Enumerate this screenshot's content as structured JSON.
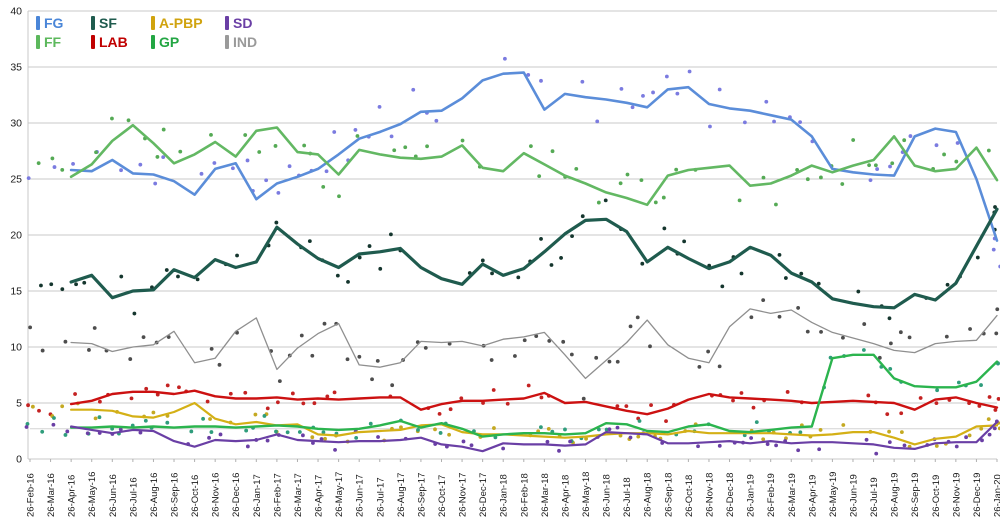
{
  "chart_data": {
    "type": "line",
    "title": "",
    "xlabel": "",
    "ylabel": "",
    "ylim": [
      0,
      40
    ],
    "y_ticks": [
      0,
      5,
      10,
      15,
      20,
      25,
      30,
      35,
      40
    ],
    "grid": "horizontal",
    "legend_position": "top-left",
    "x_labels": [
      "26-Feb-16",
      "26-Mar-16",
      "26-Apr-16",
      "26-May-16",
      "26-Jun-16",
      "26-Jul-16",
      "26-Aug-16",
      "26-Sep-16",
      "26-Oct-16",
      "26-Nov-16",
      "26-Dec-16",
      "26-Jan-17",
      "26-Feb-17",
      "26-Mar-17",
      "26-Apr-17",
      "26-May-17",
      "26-Jun-17",
      "26-Jul-17",
      "26-Aug-17",
      "26-Sep-17",
      "26-Oct-17",
      "26-Nov-17",
      "26-Dec-17",
      "26-Jan-18",
      "26-Feb-18",
      "26-Mar-18",
      "26-Apr-18",
      "26-May-18",
      "26-Jun-18",
      "26-Jul-18",
      "26-Aug-18",
      "26-Sep-18",
      "26-Oct-18",
      "26-Nov-18",
      "26-Dec-18",
      "26-Jan-19",
      "26-Feb-19",
      "26-Mar-19",
      "26-Apr-19",
      "26-May-19",
      "26-Jun-19",
      "26-Jul-19",
      "26-Aug-19",
      "26-Sep-19",
      "26-Oct-19",
      "26-Nov-19",
      "26-Dec-19",
      "26-Jan-20"
    ],
    "reference_line": {
      "value": 2.7,
      "color": "#d4d4d4"
    },
    "series": [
      {
        "name": "IND",
        "color": "#8f8f8f",
        "dot_color": "#4d4d4d",
        "width": 1.3,
        "scatter_spread": 2.2,
        "values": [
          null,
          null,
          10.4,
          10.3,
          9.6,
          10.0,
          10.2,
          11.4,
          8.6,
          9.0,
          11.4,
          12.6,
          8.0,
          9.9,
          11.2,
          12.1,
          8.4,
          8.2,
          8.6,
          10.5,
          10.4,
          10.5,
          10.1,
          10.7,
          10.9,
          11.3,
          9.3,
          7.2,
          8.8,
          10.4,
          12.4,
          10.2,
          9.0,
          8.6,
          11.8,
          13.4,
          13.0,
          13.3,
          12.2,
          11.3,
          10.8,
          10.3,
          9.7,
          9.5,
          10.3,
          10.5,
          10.6,
          12.8
        ]
      },
      {
        "name": "FG",
        "color": "#5b8dd9",
        "dot_color": "#7b7be0",
        "width": 2.6,
        "scatter_spread": 2.6,
        "values": [
          null,
          null,
          25.8,
          25.7,
          26.7,
          25.5,
          25.4,
          24.8,
          23.6,
          25.9,
          26.4,
          23.2,
          24.6,
          25.2,
          25.9,
          27.2,
          28.6,
          29.2,
          29.9,
          31.0,
          31.1,
          32.2,
          33.8,
          34.4,
          34.5,
          31.2,
          32.6,
          32.3,
          32.1,
          31.8,
          31.4,
          33.0,
          33.2,
          31.7,
          31.3,
          31.1,
          30.7,
          30.3,
          28.8,
          25.9,
          25.6,
          25.4,
          25.3,
          28.8,
          29.5,
          29.2,
          25.0,
          19.5
        ]
      },
      {
        "name": "FF",
        "color": "#63b863",
        "dot_color": "#55aa55",
        "width": 2.6,
        "scatter_spread": 2.6,
        "values": [
          null,
          null,
          25.2,
          26.3,
          28.4,
          29.8,
          28.2,
          26.4,
          27.2,
          28.3,
          27.0,
          29.3,
          29.6,
          27.4,
          27.2,
          25.4,
          27.6,
          27.2,
          26.9,
          26.8,
          27.0,
          28.0,
          26.0,
          25.7,
          27.3,
          26.3,
          25.3,
          24.6,
          23.8,
          23.3,
          22.7,
          25.3,
          25.8,
          26.0,
          26.2,
          24.4,
          24.6,
          25.3,
          26.2,
          25.6,
          26.2,
          26.7,
          28.8,
          26.2,
          25.7,
          25.9,
          27.8,
          24.9
        ]
      },
      {
        "name": "SF",
        "color": "#1f5b4e",
        "dot_color": "#15362e",
        "width": 3.2,
        "scatter_spread": 2.3,
        "values": [
          null,
          null,
          15.8,
          16.4,
          14.4,
          15.0,
          15.1,
          16.9,
          16.2,
          17.8,
          17.1,
          17.6,
          20.7,
          19.2,
          17.9,
          17.1,
          18.3,
          18.5,
          18.8,
          17.1,
          16.1,
          15.6,
          17.4,
          16.4,
          17.0,
          18.5,
          20.1,
          21.3,
          21.4,
          20.3,
          17.6,
          18.9,
          17.9,
          17.0,
          17.6,
          18.9,
          18.2,
          16.6,
          15.8,
          14.3,
          13.9,
          13.6,
          13.5,
          14.7,
          14.2,
          15.7,
          19.0,
          22.3
        ]
      },
      {
        "name": "LAB",
        "color": "#cc1111",
        "dot_color": "#c42222",
        "width": 2.4,
        "scatter_spread": 1.3,
        "values": [
          null,
          null,
          4.9,
          5.2,
          5.8,
          6.0,
          6.0,
          5.8,
          6.1,
          5.6,
          5.4,
          5.4,
          5.5,
          5.3,
          5.4,
          5.3,
          5.4,
          5.5,
          5.5,
          4.4,
          4.9,
          5.2,
          5.2,
          5.3,
          5.4,
          5.9,
          5.0,
          5.1,
          4.7,
          4.3,
          4.0,
          4.5,
          5.3,
          5.8,
          5.5,
          5.4,
          5.3,
          5.2,
          5.0,
          5.1,
          5.2,
          5.1,
          5.0,
          4.4,
          5.3,
          5.5,
          5.0,
          4.6
        ]
      },
      {
        "name": "A-PBP",
        "color": "#d4b016",
        "dot_color": "#c4a922",
        "width": 2.2,
        "scatter_spread": 1.1,
        "values": [
          null,
          null,
          4.4,
          4.4,
          4.3,
          3.8,
          3.7,
          4.2,
          5.0,
          3.6,
          3.1,
          3.3,
          3.0,
          3.1,
          2.2,
          2.1,
          2.4,
          2.5,
          2.6,
          3.0,
          3.1,
          2.4,
          2.2,
          2.2,
          2.1,
          2.0,
          1.9,
          2.0,
          2.2,
          2.3,
          2.3,
          2.2,
          2.5,
          2.3,
          2.3,
          2.3,
          2.3,
          2.2,
          2.1,
          2.2,
          2.4,
          2.4,
          1.9,
          1.3,
          1.8,
          2.0,
          2.9,
          3.0
        ]
      },
      {
        "name": "GP",
        "color": "#2bb44e",
        "dot_color": "#2f9d7c",
        "width": 2.4,
        "scatter_spread": 1.0,
        "values": [
          null,
          null,
          2.8,
          2.8,
          2.9,
          2.8,
          2.9,
          2.8,
          2.9,
          2.9,
          2.8,
          2.9,
          3.0,
          2.9,
          2.7,
          2.6,
          2.7,
          3.0,
          3.4,
          2.8,
          3.2,
          2.7,
          2.0,
          2.2,
          2.3,
          2.3,
          2.2,
          2.3,
          3.2,
          3.1,
          2.5,
          2.4,
          2.9,
          3.1,
          2.5,
          2.4,
          2.6,
          2.8,
          2.9,
          9.0,
          9.3,
          9.3,
          7.2,
          6.5,
          6.4,
          6.4,
          6.9,
          8.7
        ]
      },
      {
        "name": "SD",
        "color": "#6a3fa5",
        "dot_color": "#6a3fa5",
        "width": 2.2,
        "scatter_spread": 1.0,
        "values": [
          null,
          null,
          2.9,
          2.6,
          2.3,
          2.6,
          2.5,
          1.6,
          1.1,
          1.7,
          1.6,
          1.7,
          2.2,
          1.7,
          1.6,
          1.5,
          1.6,
          1.6,
          1.7,
          1.9,
          1.3,
          1.1,
          0.7,
          1.4,
          1.3,
          1.3,
          1.2,
          1.3,
          2.4,
          2.3,
          2.2,
          1.4,
          1.4,
          1.5,
          1.6,
          1.4,
          1.6,
          1.4,
          1.5,
          1.5,
          1.4,
          1.3,
          1.0,
          0.9,
          1.4,
          1.5,
          1.5,
          3.3
        ]
      }
    ],
    "legend": [
      {
        "label": "FG",
        "color": "#4a86d8"
      },
      {
        "label": "SF",
        "color": "#1f5b4e"
      },
      {
        "label": "A-PBP",
        "color": "#d0a30e"
      },
      {
        "label": "SD",
        "color": "#6a3fa5"
      },
      {
        "label": "FF",
        "color": "#5cb85c"
      },
      {
        "label": "LAB",
        "color": "#c00000"
      },
      {
        "label": "GP",
        "color": "#23a643"
      },
      {
        "label": "IND",
        "color": "#9a9a9a"
      }
    ],
    "axis": {
      "tick_color": "#b0b0b0",
      "grid_color": "#c8c8c8",
      "label_color": "#1a1a1a"
    }
  }
}
